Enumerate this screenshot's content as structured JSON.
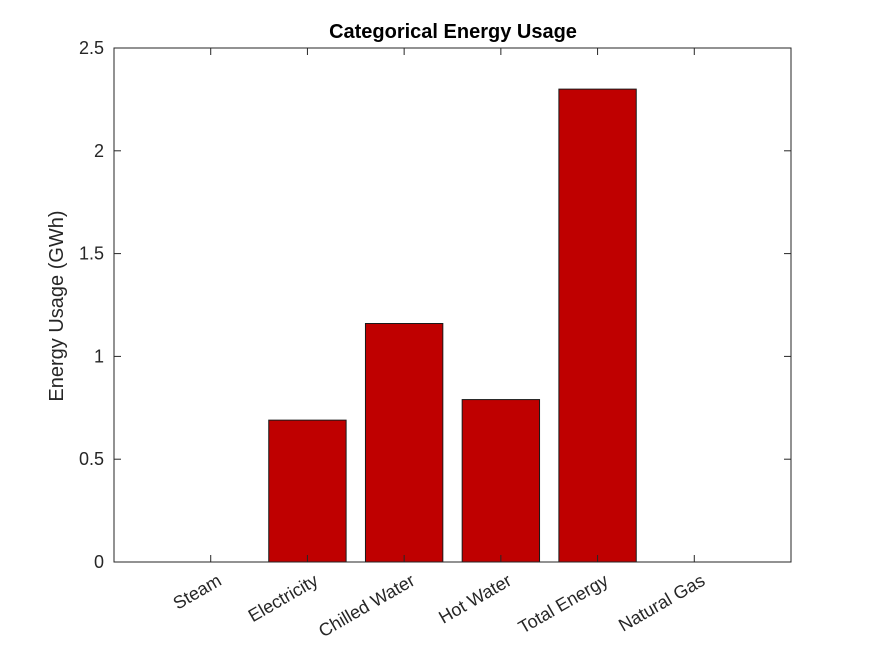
{
  "chart_data": {
    "type": "bar",
    "title": "Categorical Energy Usage",
    "xlabel": "",
    "ylabel": "Energy Usage (GWh)",
    "categories": [
      "Steam",
      "Electricity",
      "Chilled Water",
      "Hot Water",
      "Total Energy",
      "Natural Gas"
    ],
    "values": [
      0,
      0.69,
      1.16,
      0.79,
      2.3,
      0
    ],
    "ylim": [
      0,
      2.5
    ],
    "yticks": [
      0,
      0.5,
      1,
      1.5,
      2,
      2.5
    ],
    "ytick_labels": [
      "0",
      "0.5",
      "1",
      "1.5",
      "2",
      "2.5"
    ],
    "grid": false,
    "legend": "none",
    "bar_color": "#bf0000",
    "bar_edge_color": "#1a1a1a"
  }
}
